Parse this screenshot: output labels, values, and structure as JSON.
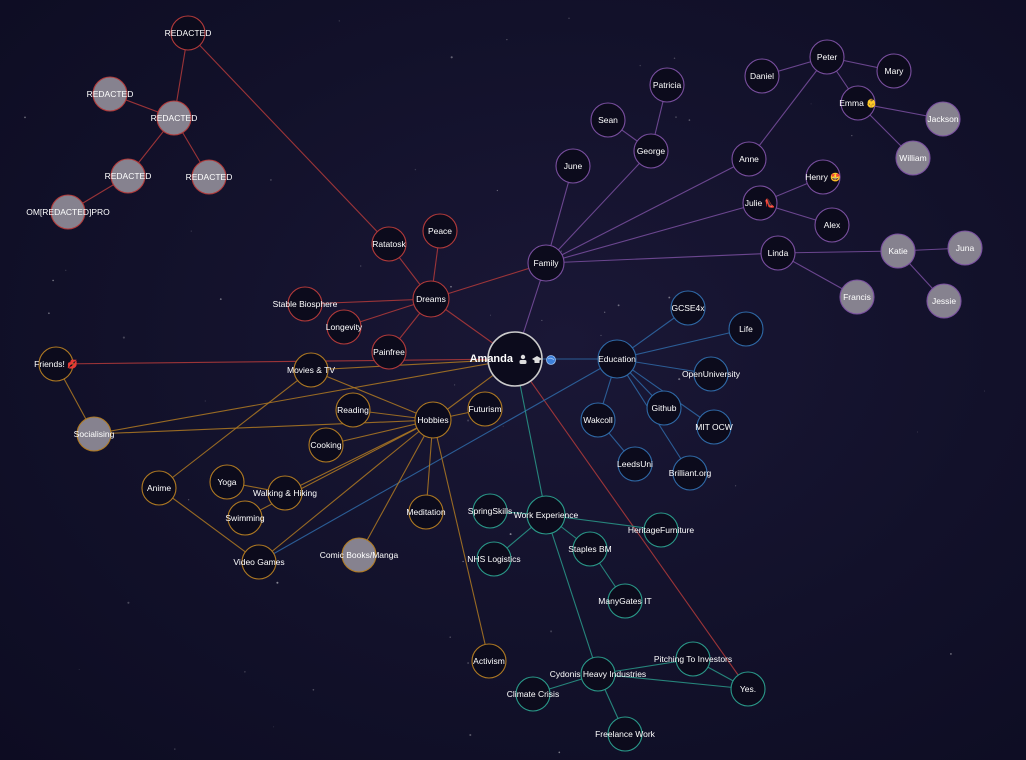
{
  "colors": {
    "background": "#12112a",
    "node_fill": "#0c0b1c",
    "node_fill_grey": "#86828f",
    "redacted": "#b33a3a",
    "family": "#7a4fa0",
    "education": "#2f6aa8",
    "hobbies": "#b07a22",
    "work": "#2a9a8a",
    "center": "#cccccc",
    "label": "#ffffff"
  },
  "graph": {
    "center": {
      "label": "Amanda",
      "icons": [
        "person-icon",
        "graduation-cap-icon",
        "globe-icon"
      ]
    },
    "nodes": [
      {
        "id": "red_top",
        "label": "REDACTED",
        "group": "redacted",
        "filled": false
      },
      {
        "id": "red_a",
        "label": "REDACTED",
        "group": "redacted",
        "filled": true
      },
      {
        "id": "red_b",
        "label": "REDACTED",
        "group": "redacted",
        "filled": true
      },
      {
        "id": "red_c",
        "label": "REDACTED",
        "group": "redacted",
        "filled": true
      },
      {
        "id": "red_d",
        "label": "REDACTED",
        "group": "redacted",
        "filled": true
      },
      {
        "id": "ompro",
        "label": "OM[REDACTED]PRO",
        "group": "redacted",
        "filled": true
      },
      {
        "id": "ratatosk",
        "label": "Ratatosk",
        "group": "dreams",
        "filled": false
      },
      {
        "id": "peace",
        "label": "Peace",
        "group": "dreams",
        "filled": false
      },
      {
        "id": "dreams",
        "label": "Dreams",
        "group": "dreams",
        "filled": false
      },
      {
        "id": "stable",
        "label": "Stable Biosphere",
        "group": "dreams",
        "filled": false
      },
      {
        "id": "longevity",
        "label": "Longevity",
        "group": "dreams",
        "filled": false
      },
      {
        "id": "painfree",
        "label": "Painfree",
        "group": "dreams",
        "filled": false
      },
      {
        "id": "friends",
        "label": "Friends! 💋",
        "group": "hobbies",
        "filled": false
      },
      {
        "id": "social",
        "label": "Socialising",
        "group": "hobbies",
        "filled": true
      },
      {
        "id": "family",
        "label": "Family",
        "group": "family",
        "filled": false
      },
      {
        "id": "patricia",
        "label": "Patricia",
        "group": "family",
        "filled": false
      },
      {
        "id": "sean",
        "label": "Sean",
        "group": "family",
        "filled": false
      },
      {
        "id": "george",
        "label": "George",
        "group": "family",
        "filled": false
      },
      {
        "id": "june",
        "label": "June",
        "group": "family",
        "filled": false
      },
      {
        "id": "anne",
        "label": "Anne",
        "group": "family",
        "filled": false
      },
      {
        "id": "daniel",
        "label": "Daniel",
        "group": "family",
        "filled": false
      },
      {
        "id": "peter",
        "label": "Peter",
        "group": "family",
        "filled": false
      },
      {
        "id": "mary",
        "label": "Mary",
        "group": "family",
        "filled": false
      },
      {
        "id": "emma",
        "label": "Emma 👶",
        "group": "family",
        "filled": false
      },
      {
        "id": "jackson",
        "label": "Jackson",
        "group": "family",
        "filled": true
      },
      {
        "id": "william",
        "label": "William",
        "group": "family",
        "filled": true
      },
      {
        "id": "henry",
        "label": "Henry 🤩",
        "group": "family",
        "filled": false
      },
      {
        "id": "julie",
        "label": "Julie 👠",
        "group": "family",
        "filled": false
      },
      {
        "id": "alex",
        "label": "Alex",
        "group": "family",
        "filled": false
      },
      {
        "id": "linda",
        "label": "Linda",
        "group": "family",
        "filled": false
      },
      {
        "id": "katie",
        "label": "Katie",
        "group": "family",
        "filled": true
      },
      {
        "id": "juna",
        "label": "Juna",
        "group": "family",
        "filled": true
      },
      {
        "id": "francis",
        "label": "Francis",
        "group": "family",
        "filled": true
      },
      {
        "id": "jessie",
        "label": "Jessie",
        "group": "family",
        "filled": true
      },
      {
        "id": "education",
        "label": "Education",
        "group": "education",
        "filled": false
      },
      {
        "id": "gcse",
        "label": "GCSE4x",
        "group": "education",
        "filled": false
      },
      {
        "id": "life",
        "label": "Life",
        "group": "education",
        "filled": false
      },
      {
        "id": "openuni",
        "label": "OpenUniversity",
        "group": "education",
        "filled": false
      },
      {
        "id": "wakcoll",
        "label": "Wakcoll",
        "group": "education",
        "filled": false
      },
      {
        "id": "github",
        "label": "Github",
        "group": "education",
        "filled": false
      },
      {
        "id": "mitocw",
        "label": "MIT OCW",
        "group": "education",
        "filled": false
      },
      {
        "id": "leedsuni",
        "label": "LeedsUni",
        "group": "education",
        "filled": false
      },
      {
        "id": "brilliant",
        "label": "Brilliant.org",
        "group": "education",
        "filled": false
      },
      {
        "id": "hobbies",
        "label": "Hobbies",
        "group": "hobbies",
        "filled": false
      },
      {
        "id": "futurism",
        "label": "Futurism",
        "group": "hobbies",
        "filled": false
      },
      {
        "id": "movies",
        "label": "Movies & TV",
        "group": "hobbies",
        "filled": false
      },
      {
        "id": "reading",
        "label": "Reading",
        "group": "hobbies",
        "filled": false
      },
      {
        "id": "cooking",
        "label": "Cooking",
        "group": "hobbies",
        "filled": false
      },
      {
        "id": "anime",
        "label": "Anime",
        "group": "hobbies",
        "filled": false
      },
      {
        "id": "yoga",
        "label": "Yoga",
        "group": "hobbies",
        "filled": false
      },
      {
        "id": "walking",
        "label": "Walking & Hiking",
        "group": "hobbies",
        "filled": false
      },
      {
        "id": "swimming",
        "label": "Swimming",
        "group": "hobbies",
        "filled": false
      },
      {
        "id": "videogames",
        "label": "Video Games",
        "group": "hobbies",
        "filled": false
      },
      {
        "id": "meditation",
        "label": "Meditation",
        "group": "hobbies",
        "filled": false
      },
      {
        "id": "comics",
        "label": "Comic Books/Manga",
        "group": "hobbies",
        "filled": true
      },
      {
        "id": "activism",
        "label": "Activism",
        "group": "hobbies",
        "filled": false
      },
      {
        "id": "work",
        "label": "Work Experience",
        "group": "work",
        "filled": false
      },
      {
        "id": "spring",
        "label": "SpringSkills",
        "group": "work",
        "filled": false
      },
      {
        "id": "nhs",
        "label": "NHS Logistics",
        "group": "work",
        "filled": false
      },
      {
        "id": "heritage",
        "label": "HeritageFurniture",
        "group": "work",
        "filled": false
      },
      {
        "id": "staples",
        "label": "Staples BM",
        "group": "work",
        "filled": false
      },
      {
        "id": "manygates",
        "label": "ManyGates IT",
        "group": "work",
        "filled": false
      },
      {
        "id": "cydonis",
        "label": "Cydonis Heavy Industries",
        "group": "work",
        "filled": false
      },
      {
        "id": "pitching",
        "label": "Pitching To Investors",
        "group": "work",
        "filled": false
      },
      {
        "id": "climate",
        "label": "Climate Crisis",
        "group": "work",
        "filled": false
      },
      {
        "id": "freelance",
        "label": "Freelance Work",
        "group": "work",
        "filled": false
      },
      {
        "id": "yes",
        "label": "Yes.",
        "group": "work",
        "filled": false
      }
    ]
  }
}
